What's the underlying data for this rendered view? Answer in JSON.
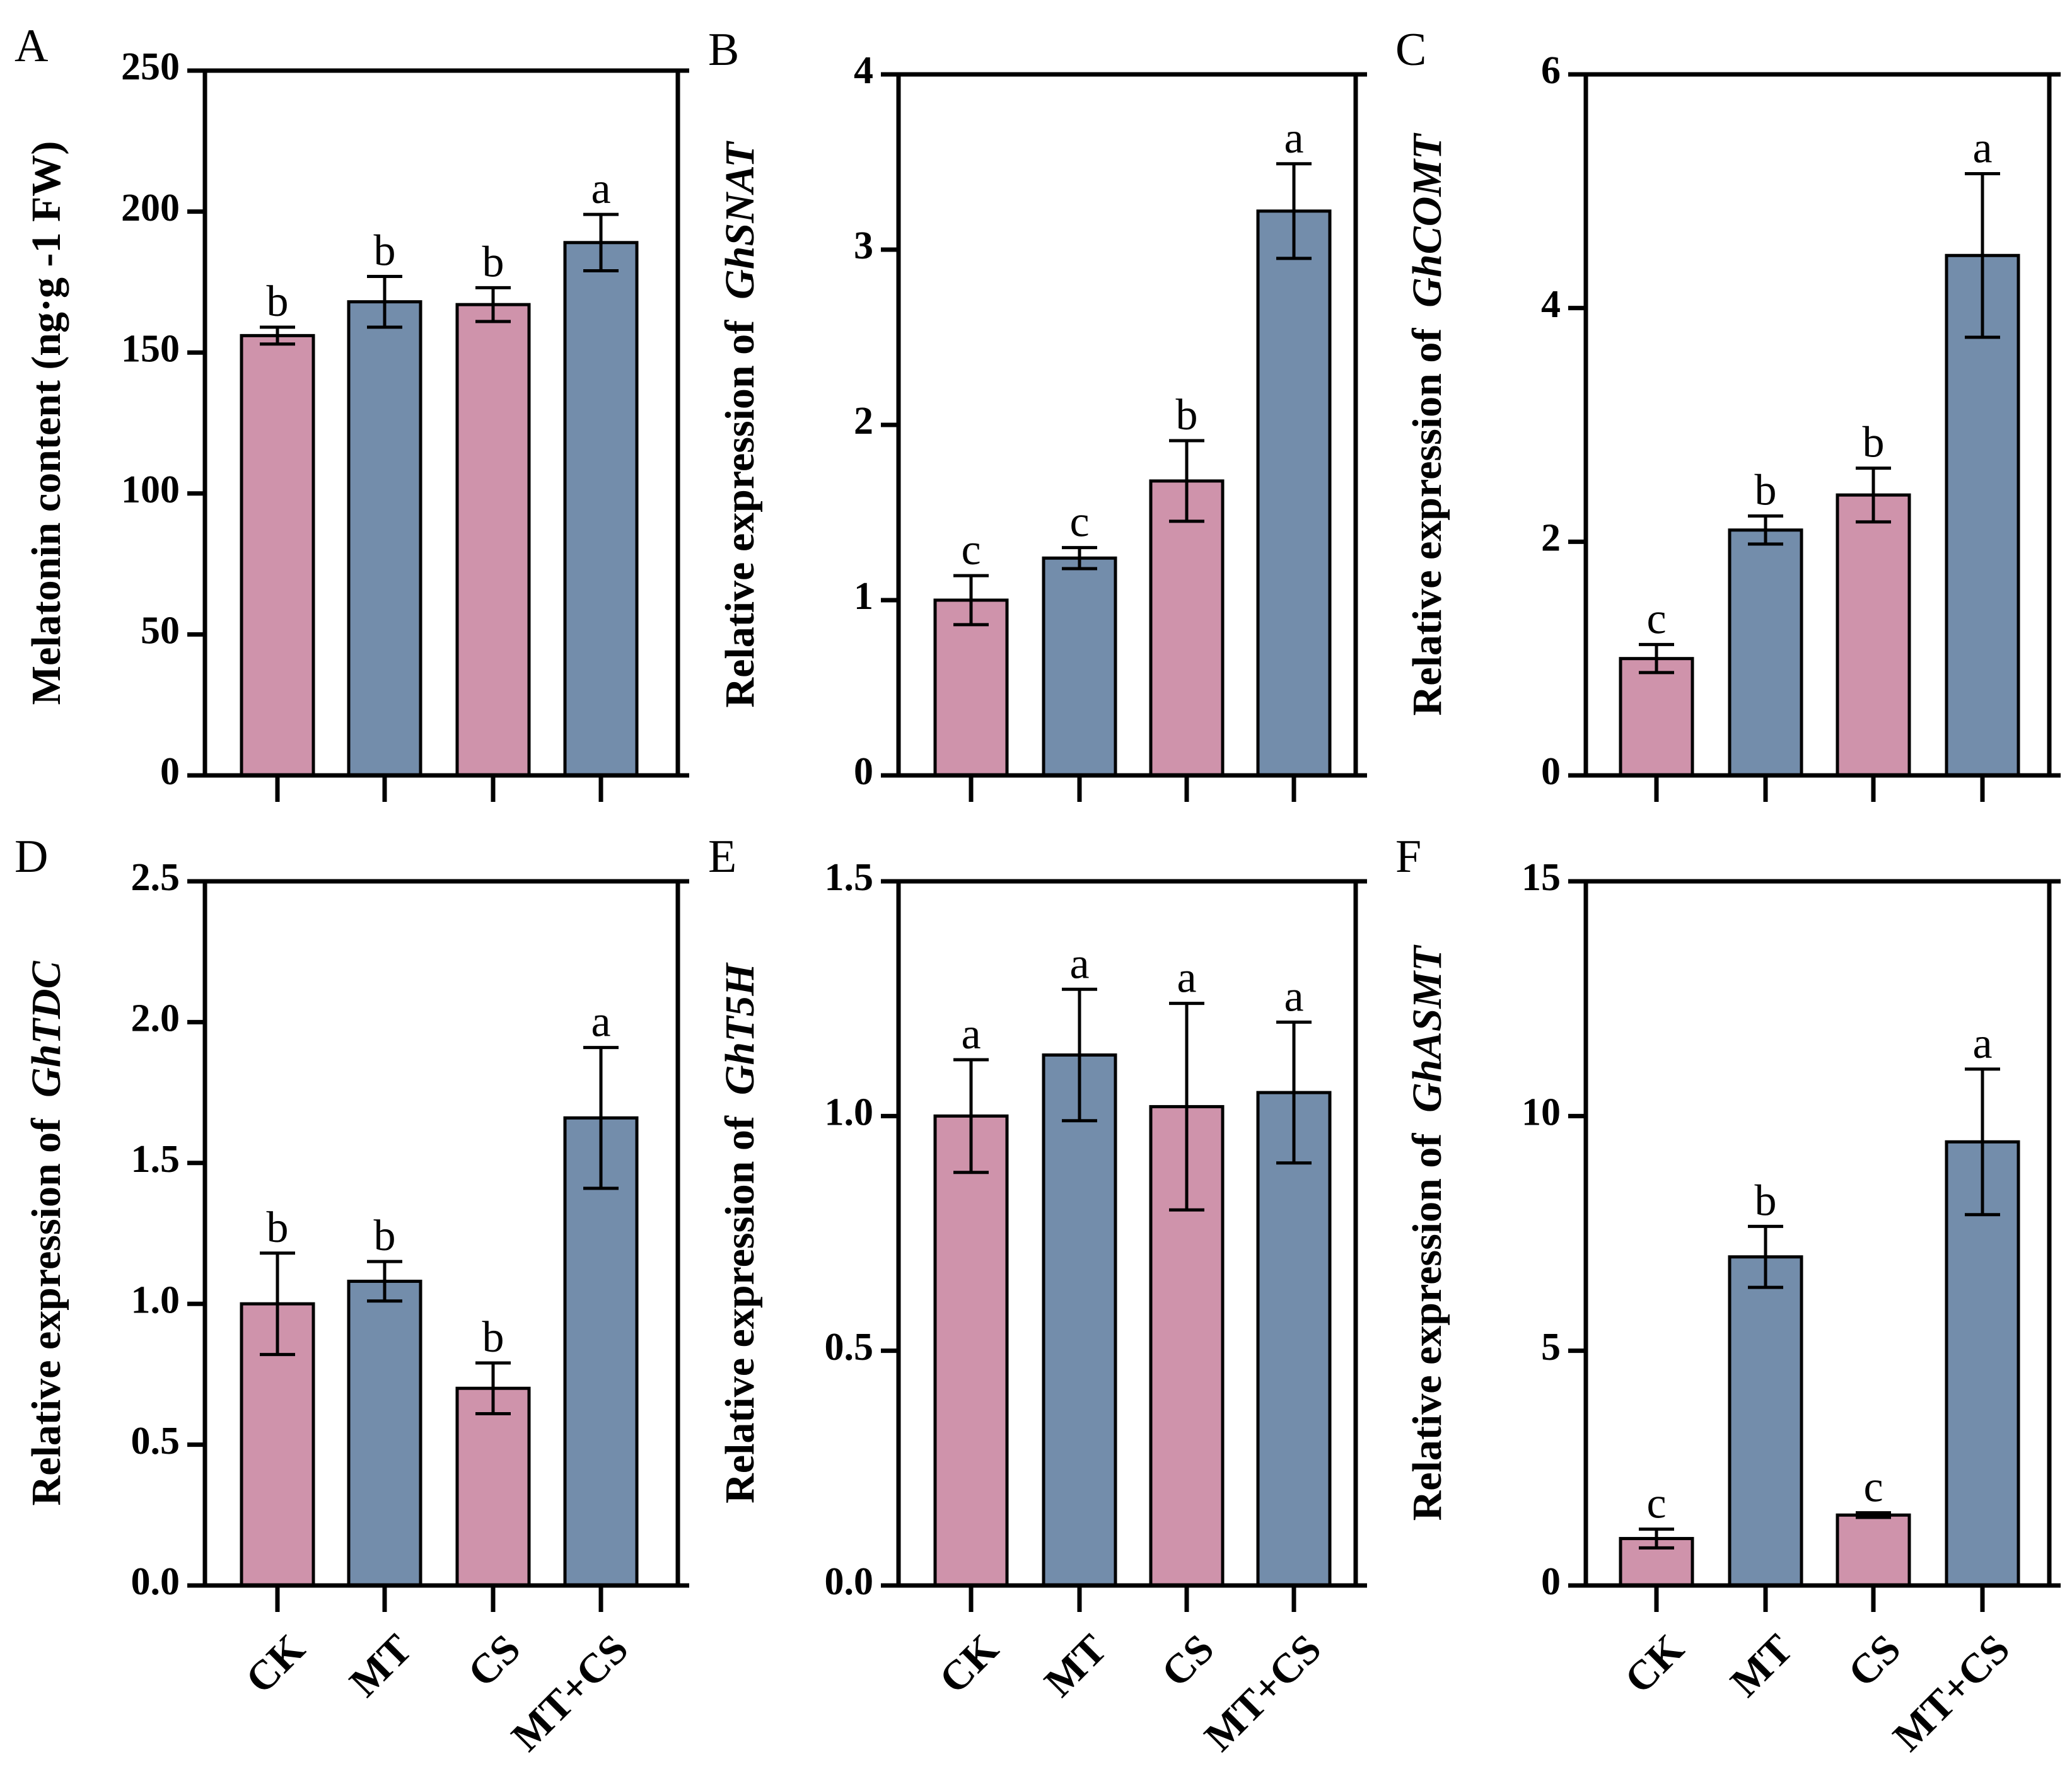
{
  "colors": {
    "pink": "#cf93ab",
    "blue": "#738dab",
    "stroke": "#000000"
  },
  "chart_data": [
    {
      "panel": "A",
      "type": "bar",
      "ylabel": "Melatonin content (ng·g -1 FW)",
      "ylabel_prefix": "",
      "ylabel_gene": "",
      "categories": [
        "CK",
        "MT",
        "CS",
        "MT+CS"
      ],
      "values": [
        156,
        168,
        167,
        189
      ],
      "errors": [
        3,
        9,
        6,
        10
      ],
      "significance": [
        "b",
        "b",
        "b",
        "a"
      ],
      "ylim": [
        0,
        250
      ],
      "yticks": [
        "0",
        "50",
        "100",
        "150",
        "200",
        "250"
      ],
      "show_categories": false
    },
    {
      "panel": "B",
      "type": "bar",
      "ylabel": "",
      "ylabel_prefix": "Relative expression of",
      "ylabel_gene": "GhSNAT",
      "categories": [
        "CK",
        "MT",
        "CS",
        "MT+CS"
      ],
      "values": [
        1.0,
        1.24,
        1.68,
        3.22
      ],
      "errors": [
        0.14,
        0.06,
        0.23,
        0.27
      ],
      "significance": [
        "c",
        "c",
        "b",
        "a"
      ],
      "ylim": [
        0,
        4
      ],
      "yticks": [
        "0",
        "1",
        "2",
        "3",
        "4"
      ],
      "show_categories": false
    },
    {
      "panel": "C",
      "type": "bar",
      "ylabel": "",
      "ylabel_prefix": "Relative expression of",
      "ylabel_gene": "GhCOMT",
      "categories": [
        "CK",
        "MT",
        "CS",
        "MT+CS"
      ],
      "values": [
        1.0,
        2.1,
        2.4,
        4.45
      ],
      "errors": [
        0.12,
        0.12,
        0.23,
        0.7
      ],
      "significance": [
        "c",
        "b",
        "b",
        "a"
      ],
      "ylim": [
        0,
        6
      ],
      "yticks": [
        "0",
        "2",
        "4",
        "6"
      ],
      "show_categories": false
    },
    {
      "panel": "D",
      "type": "bar",
      "ylabel": "",
      "ylabel_prefix": "Relative expression of",
      "ylabel_gene": "GhTDC",
      "categories": [
        "CK",
        "MT",
        "CS",
        "MT+CS"
      ],
      "values": [
        1.0,
        1.08,
        0.7,
        1.66
      ],
      "errors": [
        0.18,
        0.07,
        0.09,
        0.25
      ],
      "significance": [
        "b",
        "b",
        "b",
        "a"
      ],
      "ylim": [
        0,
        2.5
      ],
      "yticks": [
        "0.0",
        "0.5",
        "1.0",
        "1.5",
        "2.0",
        "2.5"
      ],
      "show_categories": true
    },
    {
      "panel": "E",
      "type": "bar",
      "ylabel": "",
      "ylabel_prefix": "Relative expression of",
      "ylabel_gene": "GhT5H",
      "categories": [
        "CK",
        "MT",
        "CS",
        "MT+CS"
      ],
      "values": [
        1.0,
        1.13,
        1.02,
        1.05
      ],
      "errors": [
        0.12,
        0.14,
        0.22,
        0.15
      ],
      "significance": [
        "a",
        "a",
        "a",
        "a"
      ],
      "ylim": [
        0,
        1.5
      ],
      "yticks": [
        "0.0",
        "0.5",
        "1.0",
        "1.5"
      ],
      "show_categories": true
    },
    {
      "panel": "F",
      "type": "bar",
      "ylabel": "",
      "ylabel_prefix": "Relative expression of",
      "ylabel_gene": "GhASMT",
      "categories": [
        "CK",
        "MT",
        "CS",
        "MT+CS"
      ],
      "values": [
        1.0,
        7.0,
        1.5,
        9.45
      ],
      "errors": [
        0.2,
        0.65,
        0.05,
        1.55
      ],
      "significance": [
        "c",
        "b",
        "c",
        "a"
      ],
      "ylim": [
        0,
        15
      ],
      "yticks": [
        "0",
        "5",
        "10",
        "15"
      ],
      "show_categories": true
    }
  ]
}
